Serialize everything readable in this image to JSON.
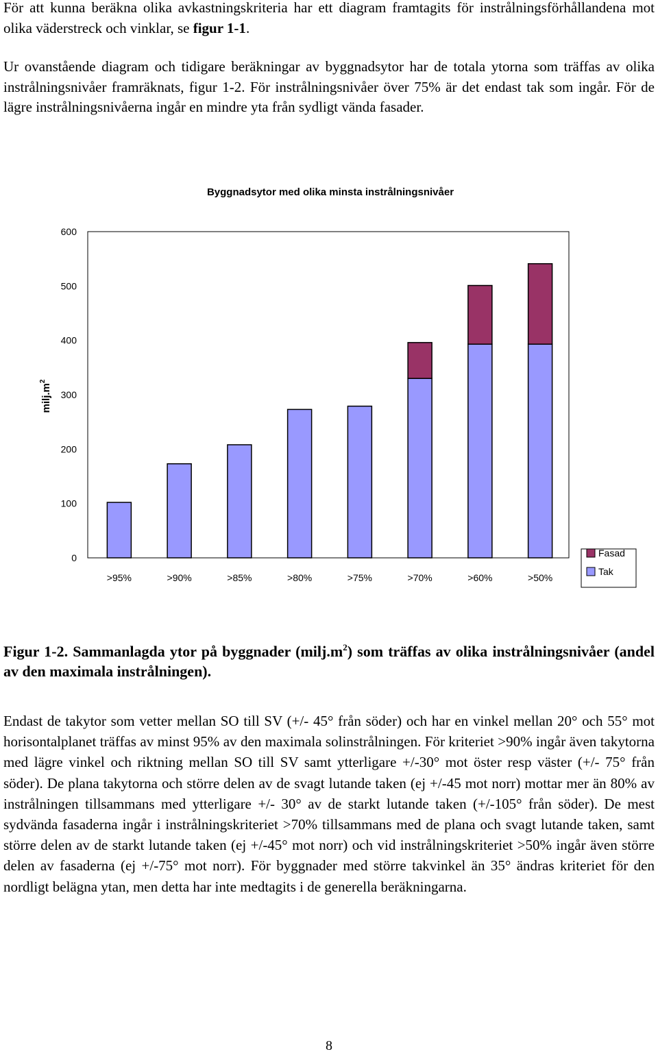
{
  "intro1": {
    "text_a": "För att kunna beräkna olika avkastningskriteria har ett diagram framtagits för instrålningsförhållandena mot olika väderstreck och vinklar, se ",
    "ref": "figur 1-1",
    "text_b": "."
  },
  "intro2": {
    "text": "Ur ovanstående diagram och tidigare beräkningar av byggnadsytor har de totala ytorna som träffas av olika instrålningsnivåer framräknats, figur 1-2. För instrålningsnivåer över 75% är det endast tak som ingår. För de lägre instrålningsnivåerna ingår en mindre yta från sydligt vända fasader."
  },
  "chart_data": {
    "type": "bar",
    "stacked": true,
    "title": "Byggnadsytor med olika minsta instrålningsnivåer",
    "ylabel": "milj.m",
    "ylabel_sup": "2",
    "xlabel": "",
    "ylim": [
      0,
      600
    ],
    "yticks": [
      "0",
      "100",
      "200",
      "300",
      "400",
      "500",
      "600"
    ],
    "grid": false,
    "legend_position": "right",
    "categories": [
      ">95%",
      ">90%",
      ">85%",
      ">80%",
      ">75%",
      ">70%",
      ">60%",
      ">50%"
    ],
    "series": [
      {
        "name": "Tak",
        "color": "#9999ff",
        "values": [
          102,
          173,
          208,
          273,
          279,
          330,
          393,
          393
        ]
      },
      {
        "name": "Fasad",
        "color": "#993366",
        "values": [
          0,
          0,
          0,
          0,
          0,
          66,
          108,
          148
        ]
      }
    ],
    "legend": [
      {
        "name": "Fasad",
        "color": "#993366"
      },
      {
        "name": "Tak",
        "color": "#9999ff"
      }
    ]
  },
  "caption": {
    "text_a": "Figur 1-2. Sammanlagda ytor på byggnader (milj.m",
    "sup": "2",
    "text_b": ") som träffas av olika instrålningsnivåer (andel av den maximala instrålningen)."
  },
  "body3": {
    "text": "Endast de takytor som vetter mellan SO till SV (+/- 45° från söder) och har en vinkel mellan 20° och 55° mot horisontalplanet träffas av minst 95% av den maximala solinstrålningen. För kriteriet >90% ingår även takytorna med lägre vinkel och riktning mellan SO till SV samt ytterligare +/-30° mot öster resp väster (+/- 75° från söder). De plana takytorna och större delen av de svagt lutande taken (ej +/-45 mot norr) mottar mer än 80% av instrålningen tillsammans med ytterligare +/- 30° av de starkt lutande taken (+/-105° från söder). De mest sydvända fasaderna ingår i instrålningskriteriet >70% tillsammans med de plana och svagt lutande taken, samt större delen av de starkt lutande taken (ej +/-45° mot norr) och vid instrålningskriteriet >50% ingår även större delen av fasaderna (ej +/-75° mot norr). För byggnader med större takvinkel än 35° ändras kriteriet för den nordligt belägna ytan, men detta har inte medtagits i de generella beräkningarna."
  },
  "page_number": "8"
}
